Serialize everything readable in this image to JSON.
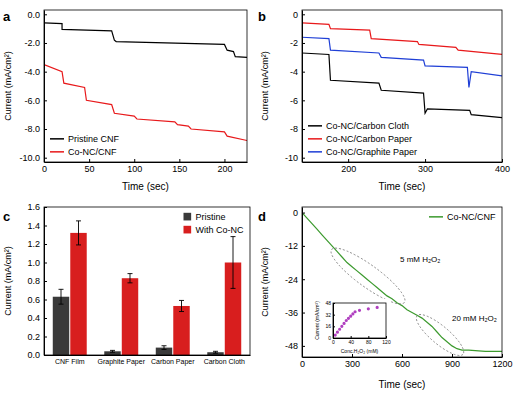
{
  "chart_data": [
    {
      "type": "line",
      "title": "a",
      "xlabel": "Time (sec)",
      "ylabel": "Current (mA/cm²)",
      "xlim": [
        0,
        225
      ],
      "xticks": [
        0,
        50,
        100,
        150,
        200
      ],
      "ylim": [
        -10.3,
        0.3
      ],
      "yticks": [
        {
          "value": -10,
          "label": "-10.0"
        },
        {
          "value": -8,
          "label": "-8.0"
        },
        {
          "value": -6,
          "label": "-6.0"
        },
        {
          "value": -4,
          "label": "-4.0"
        },
        {
          "value": -2,
          "label": "-2.0"
        },
        {
          "value": 0,
          "label": "0.0"
        }
      ],
      "legend": "lower left",
      "series": [
        {
          "name": "Pristine CNF",
          "color": "#000000",
          "x": [
            0,
            20,
            20,
            75,
            78,
            80,
            200,
            203,
            210,
            212,
            225
          ],
          "values": [
            -0.6,
            -0.65,
            -1.05,
            -1.15,
            -1.8,
            -1.9,
            -2.1,
            -2.5,
            -2.6,
            -2.95,
            -3.0
          ]
        },
        {
          "name": "Co-NC/CNF",
          "color": "#e8191b",
          "x": [
            0,
            20,
            22,
            45,
            47,
            75,
            78,
            100,
            103,
            145,
            148,
            160,
            163,
            200,
            203,
            225
          ],
          "values": [
            -3.5,
            -4.0,
            -4.8,
            -5.1,
            -6.0,
            -6.3,
            -6.9,
            -7.1,
            -7.3,
            -7.5,
            -7.7,
            -7.8,
            -8.0,
            -8.2,
            -8.5,
            -8.8
          ]
        }
      ]
    },
    {
      "type": "line",
      "title": "b",
      "xlabel": "Time (sec)",
      "ylabel": "Current (mA/cm²)",
      "xlim": [
        140,
        400
      ],
      "xticks": [
        200,
        300,
        400
      ],
      "ylim": [
        -10.3,
        0.3
      ],
      "yticks": [
        -10,
        -8,
        -6,
        -4,
        -2,
        0
      ],
      "legend": "lower left",
      "series": [
        {
          "name": "Co-NC/Carbon Cloth",
          "color": "#000000",
          "x": [
            140,
            175,
            177,
            240,
            243,
            298,
            300,
            303,
            358,
            360,
            400
          ],
          "values": [
            -2.7,
            -2.8,
            -4.6,
            -4.8,
            -5.3,
            -5.5,
            -6.9,
            -6.6,
            -6.7,
            -7.0,
            -7.2
          ]
        },
        {
          "name": "Co-NC/Carbon Paper",
          "color": "#e8191b",
          "x": [
            140,
            175,
            177,
            228,
            230,
            290,
            292,
            340,
            343,
            400
          ],
          "values": [
            -0.6,
            -0.7,
            -1.0,
            -1.1,
            -1.7,
            -1.9,
            -2.1,
            -2.3,
            -2.5,
            -2.8
          ]
        },
        {
          "name": "Co-NC/Graphite Paper",
          "color": "#1f3fd6",
          "x": [
            140,
            175,
            177,
            240,
            243,
            298,
            300,
            355,
            357,
            360,
            400
          ],
          "values": [
            -1.6,
            -1.7,
            -2.5,
            -2.7,
            -3.0,
            -3.2,
            -3.6,
            -3.7,
            -5.1,
            -4.0,
            -4.3
          ]
        }
      ]
    },
    {
      "type": "bar",
      "title": "c",
      "ylabel": "Current (mA/cm²)",
      "categories": [
        "CNF Film",
        "Graphite Paper",
        "Carbon Paper",
        "Carbon Cloth"
      ],
      "ylim": [
        0,
        1.6
      ],
      "yticks": [
        {
          "value": 0,
          "label": "0.0"
        },
        {
          "value": 0.2,
          "label": "0.2"
        },
        {
          "value": 0.4,
          "label": "0.4"
        },
        {
          "value": 0.6,
          "label": "0.6"
        },
        {
          "value": 0.8,
          "label": "0.8"
        },
        {
          "value": 1,
          "label": "1.0"
        },
        {
          "value": 1.2,
          "label": "1.2"
        },
        {
          "value": 1.4,
          "label": "1.4"
        },
        {
          "value": 1.6,
          "label": "1.6"
        }
      ],
      "legend": "upper right",
      "series": [
        {
          "name": "Pristine",
          "color": "#3a3a3a",
          "values": [
            0.63,
            0.04,
            0.08,
            0.03
          ],
          "errors": [
            0.08,
            0.01,
            0.02,
            0.01
          ]
        },
        {
          "name": "With Co-NC",
          "color": "#d81e1e",
          "values": [
            1.32,
            0.83,
            0.53,
            1.0
          ],
          "errors": [
            0.13,
            0.05,
            0.06,
            0.28
          ]
        }
      ]
    },
    {
      "type": "line",
      "title": "d",
      "xlabel": "Time (sec)",
      "ylabel": "Current (mA/cm²)",
      "xlim": [
        0,
        1200
      ],
      "xticks": [
        0,
        300,
        600,
        900,
        1200
      ],
      "ylim": [
        -52,
        2
      ],
      "yticks": [
        -48,
        -36,
        -24,
        -12,
        0
      ],
      "legend": "upper right",
      "annotations": [
        "5 mM H₂O₂",
        "20 mM H₂O₂"
      ],
      "series": [
        {
          "name": "Co-NC/CNF",
          "color": "#3c9a2e",
          "x": [
            0,
            60,
            90,
            120,
            150,
            180,
            210,
            240,
            270,
            300,
            330,
            360,
            390,
            420,
            450,
            480,
            510,
            540,
            570,
            600,
            630,
            660,
            690,
            720,
            750,
            780,
            810,
            840,
            870,
            900,
            930,
            960,
            1000,
            1100,
            1200
          ],
          "values": [
            0,
            -4,
            -6,
            -8,
            -10,
            -12,
            -14,
            -16,
            -18,
            -19.5,
            -21,
            -22.5,
            -24,
            -25.5,
            -27,
            -28.5,
            -30,
            -31,
            -32.5,
            -33.5,
            -35,
            -36,
            -37,
            -38,
            -39.5,
            -41,
            -43,
            -45,
            -46.5,
            -48,
            -49,
            -49.5,
            -49.5,
            -50,
            -50
          ]
        }
      ]
    },
    {
      "type": "scatter",
      "xlabel": "Conc.H₂O₂ (mM)",
      "ylabel": "Current (mA/cm²)",
      "xlim": [
        0,
        120
      ],
      "xticks": [
        0,
        40,
        80,
        120
      ],
      "ylim": [
        0,
        48
      ],
      "yticks": [
        0,
        16,
        32,
        48
      ],
      "color": "#b03fc0",
      "marker": "circle",
      "x": [
        5,
        10,
        15,
        20,
        25,
        30,
        35,
        40,
        45,
        50,
        60,
        80,
        100
      ],
      "values": [
        4,
        8,
        12,
        16,
        20,
        24,
        27,
        30,
        33,
        36,
        38,
        40,
        42
      ]
    }
  ]
}
